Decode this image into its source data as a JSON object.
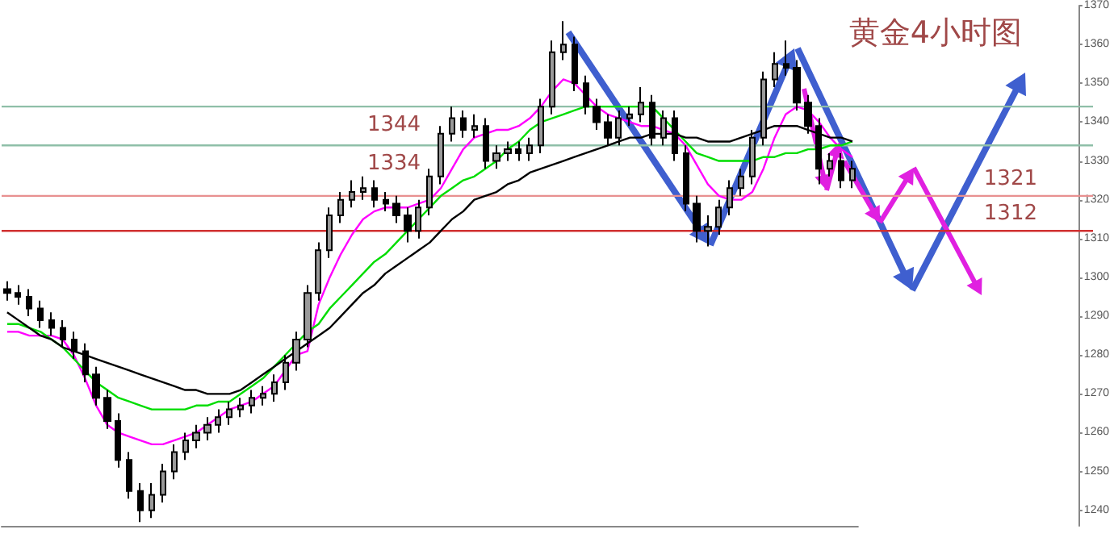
{
  "chart_data": {
    "type": "candlestick",
    "title": "黄金4小时图",
    "categories": [
      null,
      null,
      null,
      null,
      null,
      null,
      null,
      null,
      null,
      null,
      null,
      null,
      null,
      null,
      null,
      null,
      null,
      null,
      null,
      null,
      null,
      null,
      null,
      null,
      null,
      null,
      null,
      null,
      null,
      null,
      null,
      null,
      null,
      null,
      null,
      null,
      null,
      null,
      null,
      null,
      null,
      null,
      null,
      null,
      null,
      null,
      null,
      null,
      null,
      null,
      null,
      null,
      null,
      null,
      null,
      null,
      null,
      null,
      null,
      null,
      null,
      null,
      null,
      null,
      null,
      null,
      null,
      null,
      null,
      null,
      null,
      null,
      null,
      null,
      null,
      null,
      null
    ],
    "color": "#000000",
    "ohlc": [
      [
        1297,
        1299,
        1294,
        1296
      ],
      [
        1296,
        1298,
        1293,
        1295
      ],
      [
        1295,
        1297,
        1290,
        1292
      ],
      [
        1292,
        1294,
        1287,
        1289
      ],
      [
        1289,
        1291,
        1285,
        1287
      ],
      [
        1287,
        1289,
        1282,
        1284
      ],
      [
        1284,
        1286,
        1279,
        1281
      ],
      [
        1281,
        1283,
        1273,
        1275
      ],
      [
        1275,
        1277,
        1267,
        1269
      ],
      [
        1269,
        1271,
        1261,
        1263
      ],
      [
        1263,
        1265,
        1251,
        1253
      ],
      [
        1253,
        1255,
        1243,
        1245
      ],
      [
        1245,
        1247,
        1237,
        1240
      ],
      [
        1240,
        1247,
        1238,
        1244
      ],
      [
        1244,
        1252,
        1242,
        1250
      ],
      [
        1250,
        1257,
        1248,
        1255
      ],
      [
        1255,
        1260,
        1253,
        1258
      ],
      [
        1258,
        1262,
        1256,
        1260
      ],
      [
        1260,
        1264,
        1258,
        1262
      ],
      [
        1262,
        1266,
        1260,
        1264
      ],
      [
        1264,
        1268,
        1262,
        1266
      ],
      [
        1266,
        1269,
        1264,
        1267
      ],
      [
        1267,
        1271,
        1265,
        1269
      ],
      [
        1269,
        1272,
        1267,
        1270
      ],
      [
        1270,
        1275,
        1268,
        1273
      ],
      [
        1273,
        1280,
        1271,
        1278
      ],
      [
        1278,
        1286,
        1276,
        1284
      ],
      [
        1284,
        1298,
        1282,
        1296
      ],
      [
        1296,
        1309,
        1294,
        1307
      ],
      [
        1307,
        1318,
        1305,
        1316
      ],
      [
        1316,
        1322,
        1314,
        1320
      ],
      [
        1320,
        1325,
        1318,
        1322
      ],
      [
        1322,
        1326,
        1320,
        1323
      ],
      [
        1323,
        1325,
        1318,
        1320
      ],
      [
        1320,
        1322,
        1317,
        1319
      ],
      [
        1319,
        1321,
        1314,
        1316
      ],
      [
        1316,
        1318,
        1309,
        1312
      ],
      [
        1312,
        1320,
        1310,
        1318
      ],
      [
        1318,
        1328,
        1316,
        1326
      ],
      [
        1326,
        1339,
        1324,
        1337
      ],
      [
        1337,
        1344,
        1335,
        1341
      ],
      [
        1341,
        1343,
        1336,
        1338
      ],
      [
        1338,
        1342,
        1336,
        1339
      ],
      [
        1339,
        1341,
        1328,
        1330
      ],
      [
        1330,
        1334,
        1328,
        1332
      ],
      [
        1332,
        1335,
        1330,
        1333
      ],
      [
        1333,
        1335,
        1330,
        1332
      ],
      [
        1332,
        1336,
        1330,
        1334
      ],
      [
        1334,
        1346,
        1332,
        1344
      ],
      [
        1344,
        1361,
        1342,
        1358
      ],
      [
        1358,
        1366,
        1356,
        1360
      ],
      [
        1360,
        1362,
        1348,
        1350
      ],
      [
        1350,
        1352,
        1342,
        1344
      ],
      [
        1344,
        1346,
        1338,
        1340
      ],
      [
        1340,
        1342,
        1334,
        1336
      ],
      [
        1336,
        1343,
        1334,
        1341
      ],
      [
        1341,
        1344,
        1339,
        1342
      ],
      [
        1342,
        1349,
        1340,
        1345
      ],
      [
        1345,
        1347,
        1334,
        1336
      ],
      [
        1336,
        1343,
        1334,
        1341
      ],
      [
        1341,
        1343,
        1330,
        1332
      ],
      [
        1332,
        1334,
        1317,
        1319
      ],
      [
        1319,
        1321,
        1309,
        1312
      ],
      [
        1312,
        1316,
        1308,
        1313
      ],
      [
        1313,
        1320,
        1311,
        1318
      ],
      [
        1318,
        1325,
        1316,
        1323
      ],
      [
        1323,
        1328,
        1321,
        1326
      ],
      [
        1326,
        1338,
        1324,
        1336
      ],
      [
        1336,
        1353,
        1334,
        1351
      ],
      [
        1351,
        1358,
        1349,
        1355
      ],
      [
        1355,
        1361,
        1352,
        1354
      ],
      [
        1354,
        1356,
        1343,
        1345
      ],
      [
        1345,
        1347,
        1337,
        1339
      ],
      [
        1339,
        1341,
        1324,
        1328
      ],
      [
        1328,
        1332,
        1326,
        1330
      ],
      [
        1330,
        1332,
        1323,
        1325
      ],
      [
        1325,
        1330,
        1323,
        1328
      ]
    ],
    "series": [
      {
        "type": "line",
        "color": "#ff00ff",
        "values": [
          1286,
          1286,
          1285,
          1285,
          1285,
          1284,
          1280,
          1274,
          1267,
          1262,
          1260,
          1259,
          1258,
          1257,
          1257,
          1258,
          1259,
          1260,
          1262,
          1264,
          1266,
          1267,
          1268,
          1270,
          1272,
          1276,
          1280,
          1281,
          1293,
          1300,
          1306,
          1311,
          1315,
          1317,
          1318,
          1318,
          1318,
          1319,
          1320,
          1323,
          1328,
          1333,
          1336,
          1337,
          1338,
          1338,
          1339,
          1341,
          1344,
          1348,
          1351,
          1350,
          1347,
          1344,
          1342,
          1341,
          1340,
          1339,
          1339,
          1338,
          1337,
          1334,
          1329,
          1324,
          1321,
          1320,
          1320,
          1322,
          1328,
          1336,
          1342,
          1344,
          1343,
          1340,
          1336,
          1333,
          1331
        ]
      },
      {
        "type": "line",
        "color": "#00dd00",
        "values": [
          1288,
          1288,
          1287,
          1286,
          1284,
          1282,
          1279,
          1276,
          1273,
          1271,
          1269,
          1268,
          1267,
          1266,
          1266,
          1266,
          1266,
          1267,
          1267,
          1268,
          1268,
          1270,
          1272,
          1274,
          1277,
          1280,
          1283,
          1286,
          1288,
          1292,
          1295,
          1298,
          1301,
          1304,
          1306,
          1309,
          1312,
          1315,
          1318,
          1321,
          1323,
          1325,
          1326,
          1328,
          1330,
          1333,
          1335,
          1338,
          1340,
          1341,
          1342,
          1343,
          1344,
          1344,
          1344,
          1344,
          1344,
          1344,
          1344,
          1341,
          1338,
          1335,
          1332,
          1331,
          1330,
          1330,
          1330,
          1330,
          1331,
          1331,
          1332,
          1332,
          1333,
          1333,
          1334,
          1334,
          1335
        ]
      },
      {
        "type": "line",
        "color": "#000000",
        "values": [
          1291,
          1289,
          1287,
          1285,
          1284,
          1282,
          1281,
          1280,
          1279,
          1278,
          1277,
          1276,
          1275,
          1274,
          1273,
          1272,
          1271,
          1271,
          1270,
          1270,
          1270,
          1271,
          1273,
          1275,
          1277,
          1279,
          1281,
          1283,
          1285,
          1287,
          1290,
          1293,
          1296,
          1298,
          1301,
          1303,
          1305,
          1307,
          1309,
          1312,
          1315,
          1317,
          1320,
          1321,
          1322,
          1324,
          1325,
          1327,
          1328,
          1329,
          1330,
          1331,
          1332,
          1333,
          1334,
          1335,
          1336,
          1336,
          1337,
          1337,
          1337,
          1336,
          1336,
          1335,
          1335,
          1335,
          1336,
          1337,
          1338,
          1339,
          1339,
          1339,
          1338,
          1337,
          1336,
          1336,
          1335
        ]
      }
    ],
    "ylim": [
      1236,
      1370
    ],
    "yticks": [
      1240,
      1250,
      1260,
      1270,
      1280,
      1290,
      1300,
      1310,
      1320,
      1330,
      1340,
      1350,
      1360,
      1370
    ],
    "tick_labels": "y",
    "marker": "none",
    "ref_lines": [
      {
        "axis": "y",
        "value": 1344,
        "label": "1344",
        "color": "#8fbfa8"
      },
      {
        "axis": "y",
        "value": 1334,
        "label": "1334",
        "color": "#8fbfa8"
      },
      {
        "axis": "y",
        "value": 1321,
        "label": "1321",
        "color": "#e89090"
      },
      {
        "axis": "y",
        "value": 1312,
        "label": "1312",
        "color": "#d03030"
      }
    ]
  }
}
